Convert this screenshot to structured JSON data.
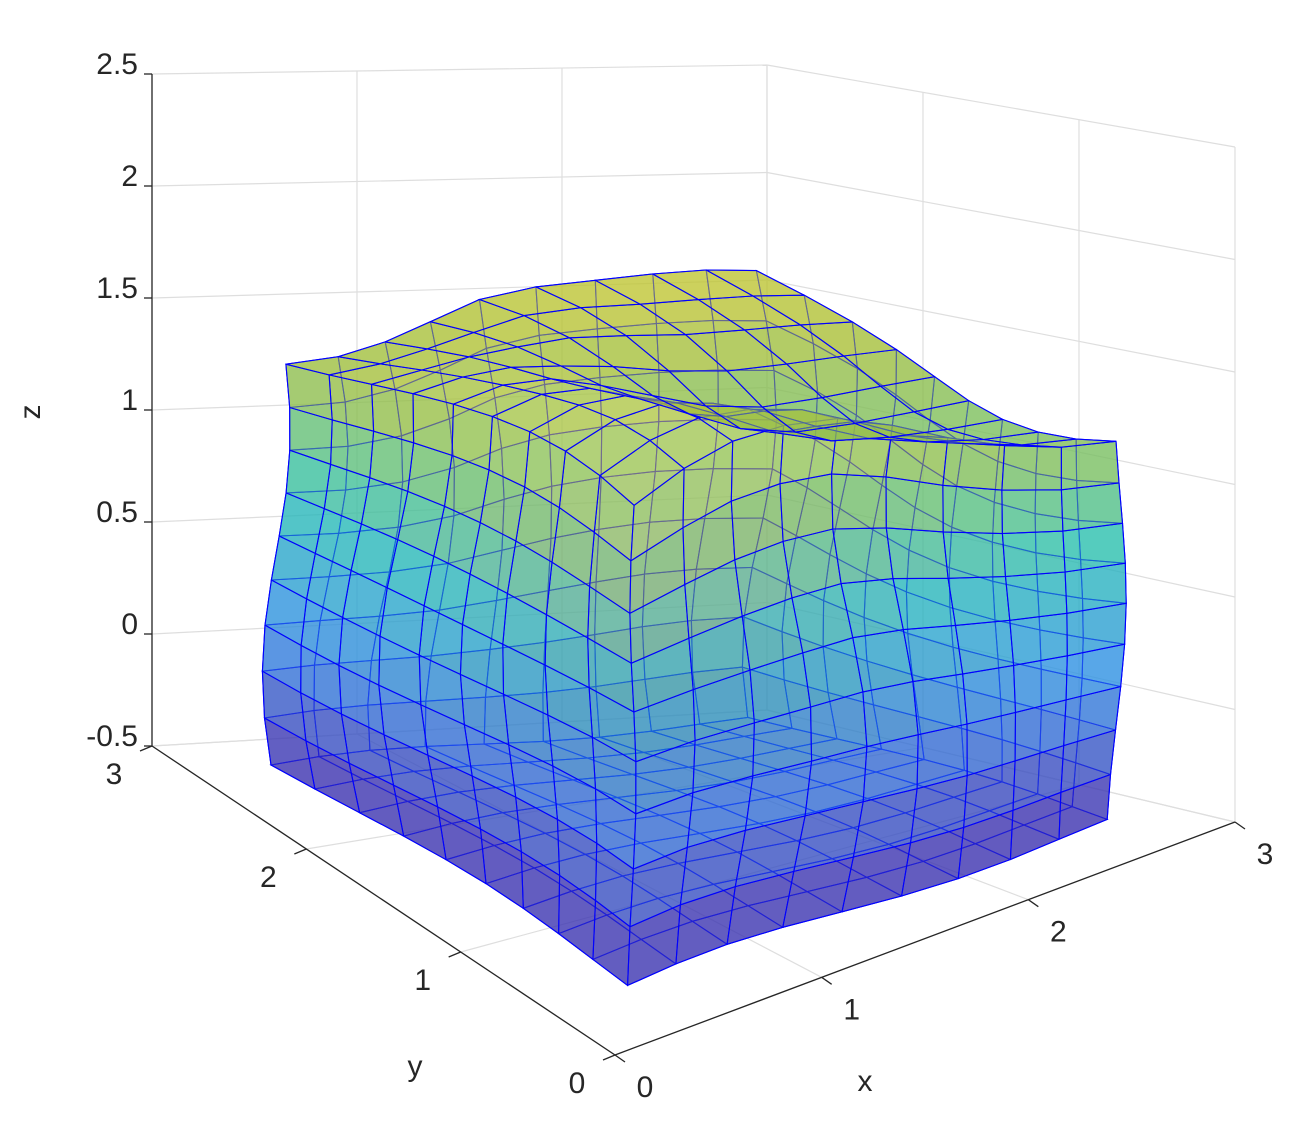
{
  "chart_data": {
    "type": "surface3d",
    "xlabel": "x",
    "ylabel": "y",
    "zlabel": "z",
    "xlim": [
      0,
      3
    ],
    "ylim": [
      0,
      3
    ],
    "zlim": [
      -0.5,
      2.5
    ],
    "xticks": [
      0,
      1,
      2,
      3
    ],
    "yticks": [
      0,
      1,
      2,
      3
    ],
    "zticks": [
      -0.5,
      0,
      0.5,
      1,
      1.5,
      2,
      2.5
    ],
    "grid": true,
    "edge_color": "#0000ff"
  }
}
